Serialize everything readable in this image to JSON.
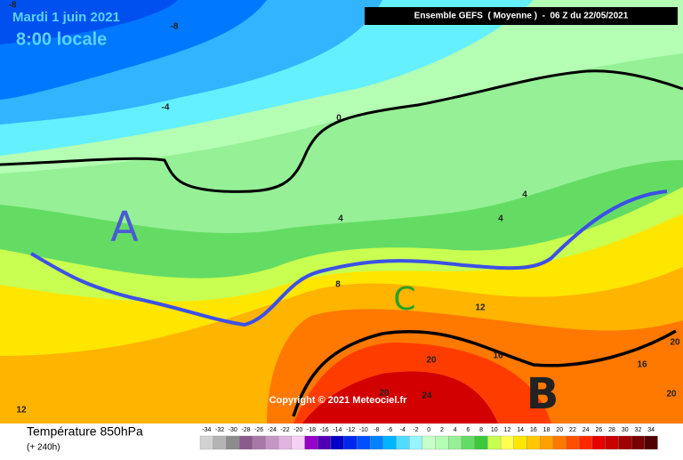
{
  "header": {
    "date": "Mardi 1 juin 2021",
    "time": "8:00 locale",
    "run": "Ensemble GEFS  ( Moyenne )  -  06 Z du 22/05/2021"
  },
  "footer": {
    "title": "Température 850hPa",
    "subtitle": "(+ 240h)"
  },
  "copyright": "Copyright © 2021 Meteociel.fr",
  "annotations": [
    "A",
    "B",
    "C"
  ],
  "contour_labels": [
    "-8",
    "-8",
    "-4",
    "0",
    "4",
    "4",
    "4",
    "8",
    "12",
    "12",
    "16",
    "16",
    "20",
    "20",
    "20",
    "20",
    "24"
  ],
  "legend": {
    "items": [
      {
        "value": -34,
        "color": "#d2d2d2"
      },
      {
        "value": -32,
        "color": "#b4b4b4"
      },
      {
        "value": -30,
        "color": "#8c8c8c"
      },
      {
        "value": -28,
        "color": "#8c5a8c"
      },
      {
        "value": -26,
        "color": "#a878a8"
      },
      {
        "value": -24,
        "color": "#c496c4"
      },
      {
        "value": -22,
        "color": "#e1b4e1"
      },
      {
        "value": -20,
        "color": "#f5d2f5"
      },
      {
        "value": -18,
        "color": "#9600c8"
      },
      {
        "value": -16,
        "color": "#5000b4"
      },
      {
        "value": -14,
        "color": "#0000c8"
      },
      {
        "value": -12,
        "color": "#0028f0"
      },
      {
        "value": -10,
        "color": "#0050ff"
      },
      {
        "value": -8,
        "color": "#0082ff"
      },
      {
        "value": -6,
        "color": "#00b4ff"
      },
      {
        "value": -4,
        "color": "#50dcff"
      },
      {
        "value": -2,
        "color": "#96f5ff"
      },
      {
        "value": 0,
        "color": "#c8ffc8"
      },
      {
        "value": 2,
        "color": "#b4ffb4"
      },
      {
        "value": 4,
        "color": "#96f096"
      },
      {
        "value": 6,
        "color": "#64dc64"
      },
      {
        "value": 8,
        "color": "#3cc83c"
      },
      {
        "value": 10,
        "color": "#c8ff50"
      },
      {
        "value": 12,
        "color": "#ffff50"
      },
      {
        "value": 14,
        "color": "#ffe600"
      },
      {
        "value": 16,
        "color": "#ffc800"
      },
      {
        "value": 18,
        "color": "#ffa000"
      },
      {
        "value": 20,
        "color": "#ff7800"
      },
      {
        "value": 22,
        "color": "#ff5000"
      },
      {
        "value": 24,
        "color": "#ff2800"
      },
      {
        "value": 26,
        "color": "#e60000"
      },
      {
        "value": 28,
        "color": "#c80000"
      },
      {
        "value": 30,
        "color": "#a00000"
      },
      {
        "value": 32,
        "color": "#780000"
      },
      {
        "value": 34,
        "color": "#500000"
      }
    ]
  }
}
